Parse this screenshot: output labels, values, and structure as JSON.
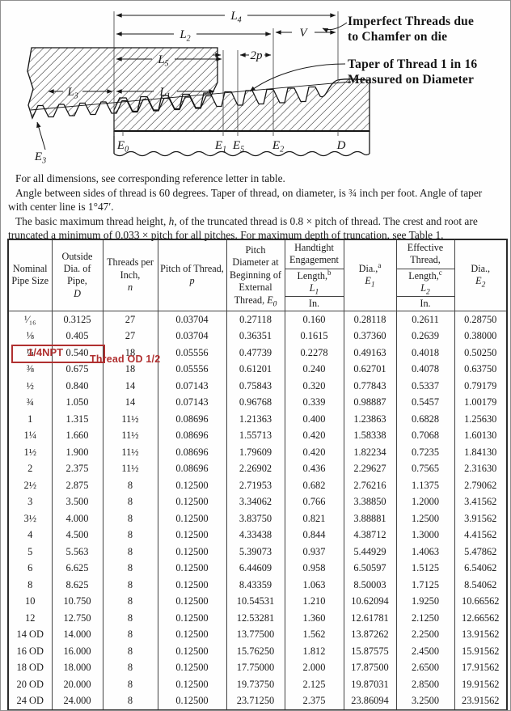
{
  "palette": {
    "ink": "#1c1c1c",
    "paper": "#fefefe",
    "annotation_red": "#b03030"
  },
  "diagram": {
    "labels": {
      "l4": {
        "m": "L",
        "s": "4"
      },
      "l2": {
        "m": "L",
        "s": "2"
      },
      "l5": {
        "m": "L",
        "s": "5"
      },
      "l3": {
        "m": "L",
        "s": "3"
      },
      "l1": {
        "m": "L",
        "s": "1"
      },
      "two_p": "2p",
      "v": "V",
      "e3": {
        "m": "E",
        "s": "3"
      },
      "e0": {
        "m": "E",
        "s": "0"
      },
      "e1": {
        "m": "E",
        "s": "1"
      },
      "e5": {
        "m": "E",
        "s": "5"
      },
      "e2": {
        "m": "E",
        "s": "2"
      },
      "d": "D"
    },
    "imperfect_note": {
      "line1": "Imperfect Threads due",
      "line2": "to Chamfer on die"
    },
    "taper_note": {
      "line1": "Taper of Thread 1 in 16",
      "line2": "Measured on Diameter"
    }
  },
  "notes": {
    "para1": "For all dimensions, see corresponding reference letter in table.",
    "para2": "Angle between sides of thread is 60 degrees. Taper of thread, on diameter, is ¾ inch per foot. Angle of taper with center line is 1°47′.",
    "para3_pre": "The basic maximum thread height, ",
    "para3_var": "h",
    "para3_post": ", of the truncated thread is 0.8 × pitch of thread. The crest and root are truncated a minimum of 0.033 × pitch for all pitches. For maximum depth of truncation, see Table 1."
  },
  "table": {
    "headers": {
      "nominal": "Nominal Pipe Size",
      "outside": "Outside Dia. of Pipe,",
      "outside_sym": "D",
      "tpi": "Threads per Inch,",
      "tpi_sym": "n",
      "pitch": "Pitch of Thread,",
      "pitch_sym": "p",
      "pd": "Pitch Diameter at Beginning of External Thread,",
      "pd_sym": "E",
      "pd_sym_sub": "0",
      "handtight": "Handtight Engagement",
      "ht_len": "Length,",
      "ht_len_sup": "b",
      "ht_len_sym": "L",
      "ht_len_sym_sub": "1",
      "ht_unit": "In.",
      "dia1": "Dia.,",
      "dia1_sup": "a",
      "dia1_sym": "E",
      "dia1_sym_sub": "1",
      "eff": "Effective Thread,",
      "eff_len": "Length,",
      "eff_len_sup": "c",
      "eff_len_sym": "L",
      "eff_len_sym_sub": "2",
      "eff_unit": "In.",
      "dia2": "Dia.,",
      "dia2_sym": "E",
      "dia2_sym_sub": "2"
    },
    "rows": [
      [
        "¹⁄₁₆",
        "0.3125",
        "27",
        "0.03704",
        "0.27118",
        "0.160",
        "0.28118",
        "0.2611",
        "0.28750"
      ],
      [
        "⅛",
        "0.405",
        "27",
        "0.03704",
        "0.36351",
        "0.1615",
        "0.37360",
        "0.2639",
        "0.38000"
      ],
      [
        "¼",
        "0.540",
        "18",
        "0.05556",
        "0.47739",
        "0.2278",
        "0.49163",
        "0.4018",
        "0.50250"
      ],
      [
        "⅜",
        "0.675",
        "18",
        "0.05556",
        "0.61201",
        "0.240",
        "0.62701",
        "0.4078",
        "0.63750"
      ],
      [
        "½",
        "0.840",
        "14",
        "0.07143",
        "0.75843",
        "0.320",
        "0.77843",
        "0.5337",
        "0.79179"
      ],
      [
        "¾",
        "1.050",
        "14",
        "0.07143",
        "0.96768",
        "0.339",
        "0.98887",
        "0.5457",
        "1.00179"
      ],
      [
        "1",
        "1.315",
        "11½",
        "0.08696",
        "1.21363",
        "0.400",
        "1.23863",
        "0.6828",
        "1.25630"
      ],
      [
        "1¼",
        "1.660",
        "11½",
        "0.08696",
        "1.55713",
        "0.420",
        "1.58338",
        "0.7068",
        "1.60130"
      ],
      [
        "1½",
        "1.900",
        "11½",
        "0.08696",
        "1.79609",
        "0.420",
        "1.82234",
        "0.7235",
        "1.84130"
      ],
      [
        "2",
        "2.375",
        "11½",
        "0.08696",
        "2.26902",
        "0.436",
        "2.29627",
        "0.7565",
        "2.31630"
      ],
      [
        "2½",
        "2.875",
        "8",
        "0.12500",
        "2.71953",
        "0.682",
        "2.76216",
        "1.1375",
        "2.79062"
      ],
      [
        "3",
        "3.500",
        "8",
        "0.12500",
        "3.34062",
        "0.766",
        "3.38850",
        "1.2000",
        "3.41562"
      ],
      [
        "3½",
        "4.000",
        "8",
        "0.12500",
        "3.83750",
        "0.821",
        "3.88881",
        "1.2500",
        "3.91562"
      ],
      [
        "4",
        "4.500",
        "8",
        "0.12500",
        "4.33438",
        "0.844",
        "4.38712",
        "1.3000",
        "4.41562"
      ],
      [
        "5",
        "5.563",
        "8",
        "0.12500",
        "5.39073",
        "0.937",
        "5.44929",
        "1.4063",
        "5.47862"
      ],
      [
        "6",
        "6.625",
        "8",
        "0.12500",
        "6.44609",
        "0.958",
        "6.50597",
        "1.5125",
        "6.54062"
      ],
      [
        "8",
        "8.625",
        "8",
        "0.12500",
        "8.43359",
        "1.063",
        "8.50003",
        "1.7125",
        "8.54062"
      ],
      [
        "10",
        "10.750",
        "8",
        "0.12500",
        "10.54531",
        "1.210",
        "10.62094",
        "1.9250",
        "10.66562"
      ],
      [
        "12",
        "12.750",
        "8",
        "0.12500",
        "12.53281",
        "1.360",
        "12.61781",
        "2.1250",
        "12.66562"
      ],
      [
        "14 OD",
        "14.000",
        "8",
        "0.12500",
        "13.77500",
        "1.562",
        "13.87262",
        "2.2500",
        "13.91562"
      ],
      [
        "16 OD",
        "16.000",
        "8",
        "0.12500",
        "15.76250",
        "1.812",
        "15.87575",
        "2.4500",
        "15.91562"
      ],
      [
        "18 OD",
        "18.000",
        "8",
        "0.12500",
        "17.75000",
        "2.000",
        "17.87500",
        "2.6500",
        "17.91562"
      ],
      [
        "20 OD",
        "20.000",
        "8",
        "0.12500",
        "19.73750",
        "2.125",
        "19.87031",
        "2.8500",
        "19.91562"
      ],
      [
        "24 OD",
        "24.000",
        "8",
        "0.12500",
        "23.71250",
        "2.375",
        "23.86094",
        "3.2500",
        "23.91562"
      ]
    ]
  },
  "highlight": {
    "row_size": "¼",
    "label": "1/4NPT",
    "note": "Thread OD 1/2",
    "color": "#b03030"
  }
}
